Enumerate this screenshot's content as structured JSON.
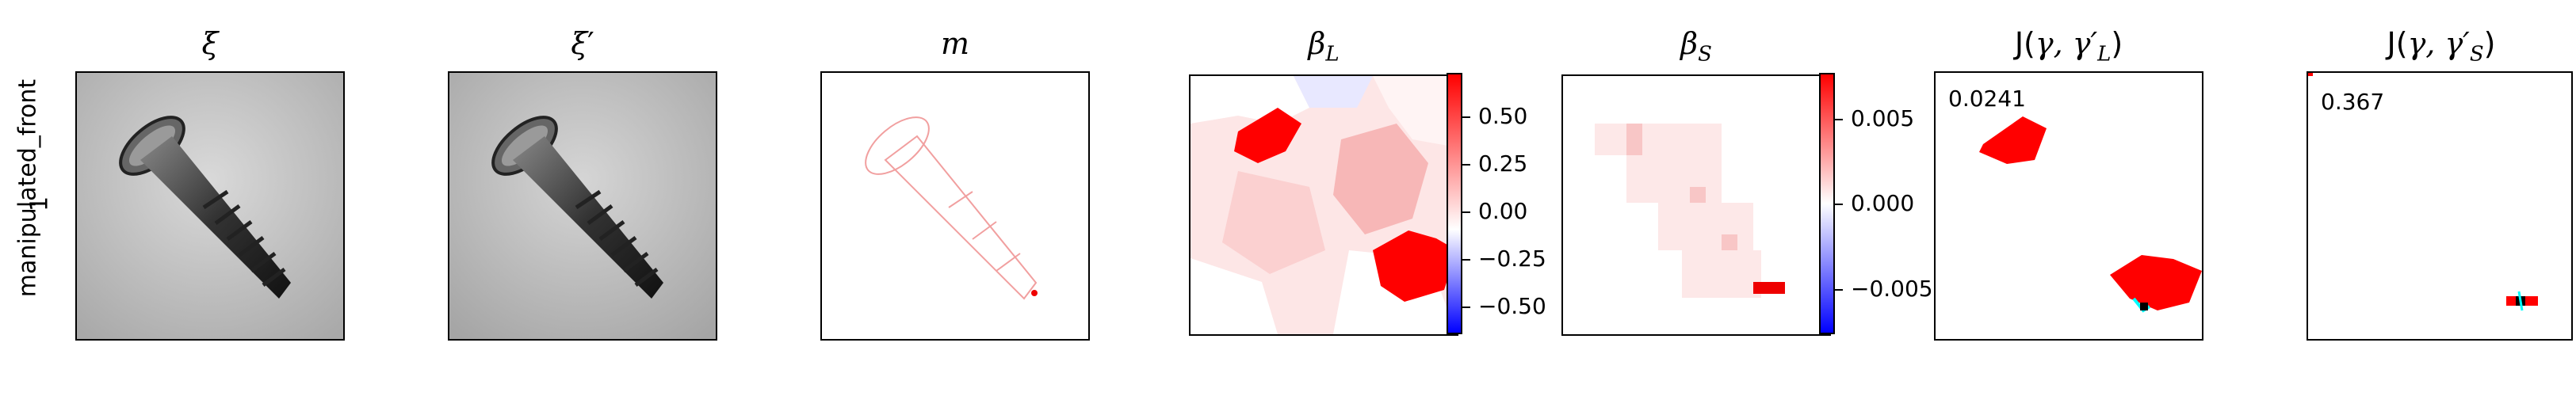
{
  "row_label": {
    "line1": "manipulated_front",
    "line2": "1"
  },
  "panels": {
    "xi": {
      "title_sym": "ξ"
    },
    "xip": {
      "title_sym": "ξ",
      "title_prime": "′"
    },
    "m": {
      "title_sym": "m"
    },
    "betaL": {
      "title_sym": "β",
      "title_sub": "L"
    },
    "betaS": {
      "title_sym": "β",
      "title_sub": "S"
    },
    "jL": {
      "title_J": "J(",
      "title_args": "γ, γ′",
      "title_sub": "L",
      "title_close": ")",
      "score": "0.0241"
    },
    "jS": {
      "title_J": "J(",
      "title_args": "γ, γ′",
      "title_sub": "S",
      "title_close": ")",
      "score": "0.367"
    }
  },
  "colorbars": {
    "betaL": {
      "ticks": [
        "0.50",
        "0.25",
        "0.00",
        "−0.25",
        "−0.50"
      ],
      "ticks_top": "0.50"
    },
    "betaS": {
      "ticks": [
        "0.005",
        "0.000",
        "−0.005"
      ]
    }
  },
  "colors": {
    "red": "#ff0000",
    "blue": "#0000ff",
    "cyan": "#00ffff",
    "white": "#ffffff"
  },
  "icons": {
    "screw": "screw-image"
  }
}
